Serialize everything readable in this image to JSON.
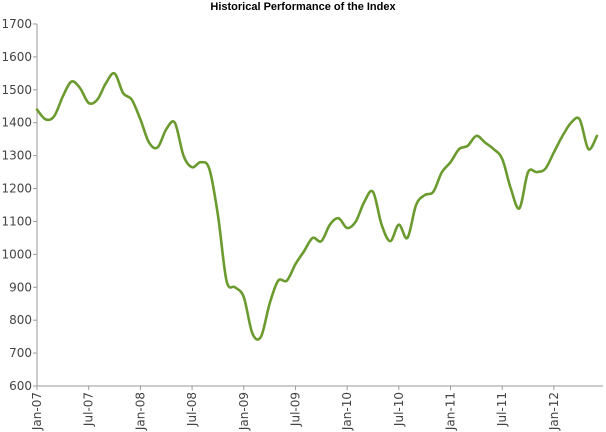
{
  "chart_data": {
    "type": "line",
    "title": "Historical Performance of the Index",
    "xlabel": "",
    "ylabel": "",
    "ylim": [
      600,
      1700
    ],
    "yticks": [
      600,
      700,
      800,
      900,
      1000,
      1100,
      1200,
      1300,
      1400,
      1500,
      1600,
      1700
    ],
    "xticks": [
      "Jan-07",
      "Jul-07",
      "Jan-08",
      "Jul-08",
      "Jan-09",
      "Jul-09",
      "Jan-10",
      "Jul-10",
      "Jan-11",
      "Jul-11",
      "Jan-12"
    ],
    "x_index_note_free": true,
    "xrange": [
      "2007-01",
      "2012-06"
    ],
    "grid": false,
    "legend": "none",
    "line_color": "#6b9a2f",
    "series": [
      {
        "x": [
          "2007-01",
          "2007-02",
          "2007-03",
          "2007-04",
          "2007-05",
          "2007-06",
          "2007-07",
          "2007-08",
          "2007-09",
          "2007-10",
          "2007-11",
          "2007-12",
          "2008-01",
          "2008-02",
          "2008-03",
          "2008-04",
          "2008-05",
          "2008-06",
          "2008-07",
          "2008-08",
          "2008-09",
          "2008-10",
          "2008-11",
          "2008-12",
          "2009-01",
          "2009-02",
          "2009-03",
          "2009-04",
          "2009-05",
          "2009-06",
          "2009-07",
          "2009-08",
          "2009-09",
          "2009-10",
          "2009-11",
          "2009-12",
          "2010-01",
          "2010-02",
          "2010-03",
          "2010-04",
          "2010-05",
          "2010-06",
          "2010-07",
          "2010-08",
          "2010-09",
          "2010-10",
          "2010-11",
          "2010-12",
          "2011-01",
          "2011-02",
          "2011-03",
          "2011-04",
          "2011-05",
          "2011-06",
          "2011-07",
          "2011-08",
          "2011-09",
          "2011-10",
          "2011-11",
          "2011-12",
          "2012-01",
          "2012-02",
          "2012-03",
          "2012-04",
          "2012-05",
          "2012-06"
        ],
        "values": [
          1440,
          1410,
          1420,
          1480,
          1525,
          1505,
          1460,
          1470,
          1520,
          1550,
          1490,
          1470,
          1410,
          1340,
          1325,
          1380,
          1400,
          1300,
          1265,
          1280,
          1260,
          1120,
          920,
          900,
          870,
          760,
          750,
          850,
          920,
          920,
          970,
          1010,
          1050,
          1040,
          1090,
          1110,
          1080,
          1100,
          1160,
          1190,
          1090,
          1040,
          1090,
          1050,
          1150,
          1180,
          1190,
          1250,
          1280,
          1320,
          1330,
          1360,
          1340,
          1320,
          1290,
          1200,
          1140,
          1250,
          1250,
          1260,
          1310,
          1360,
          1400,
          1410,
          1320,
          1360
        ]
      }
    ]
  }
}
